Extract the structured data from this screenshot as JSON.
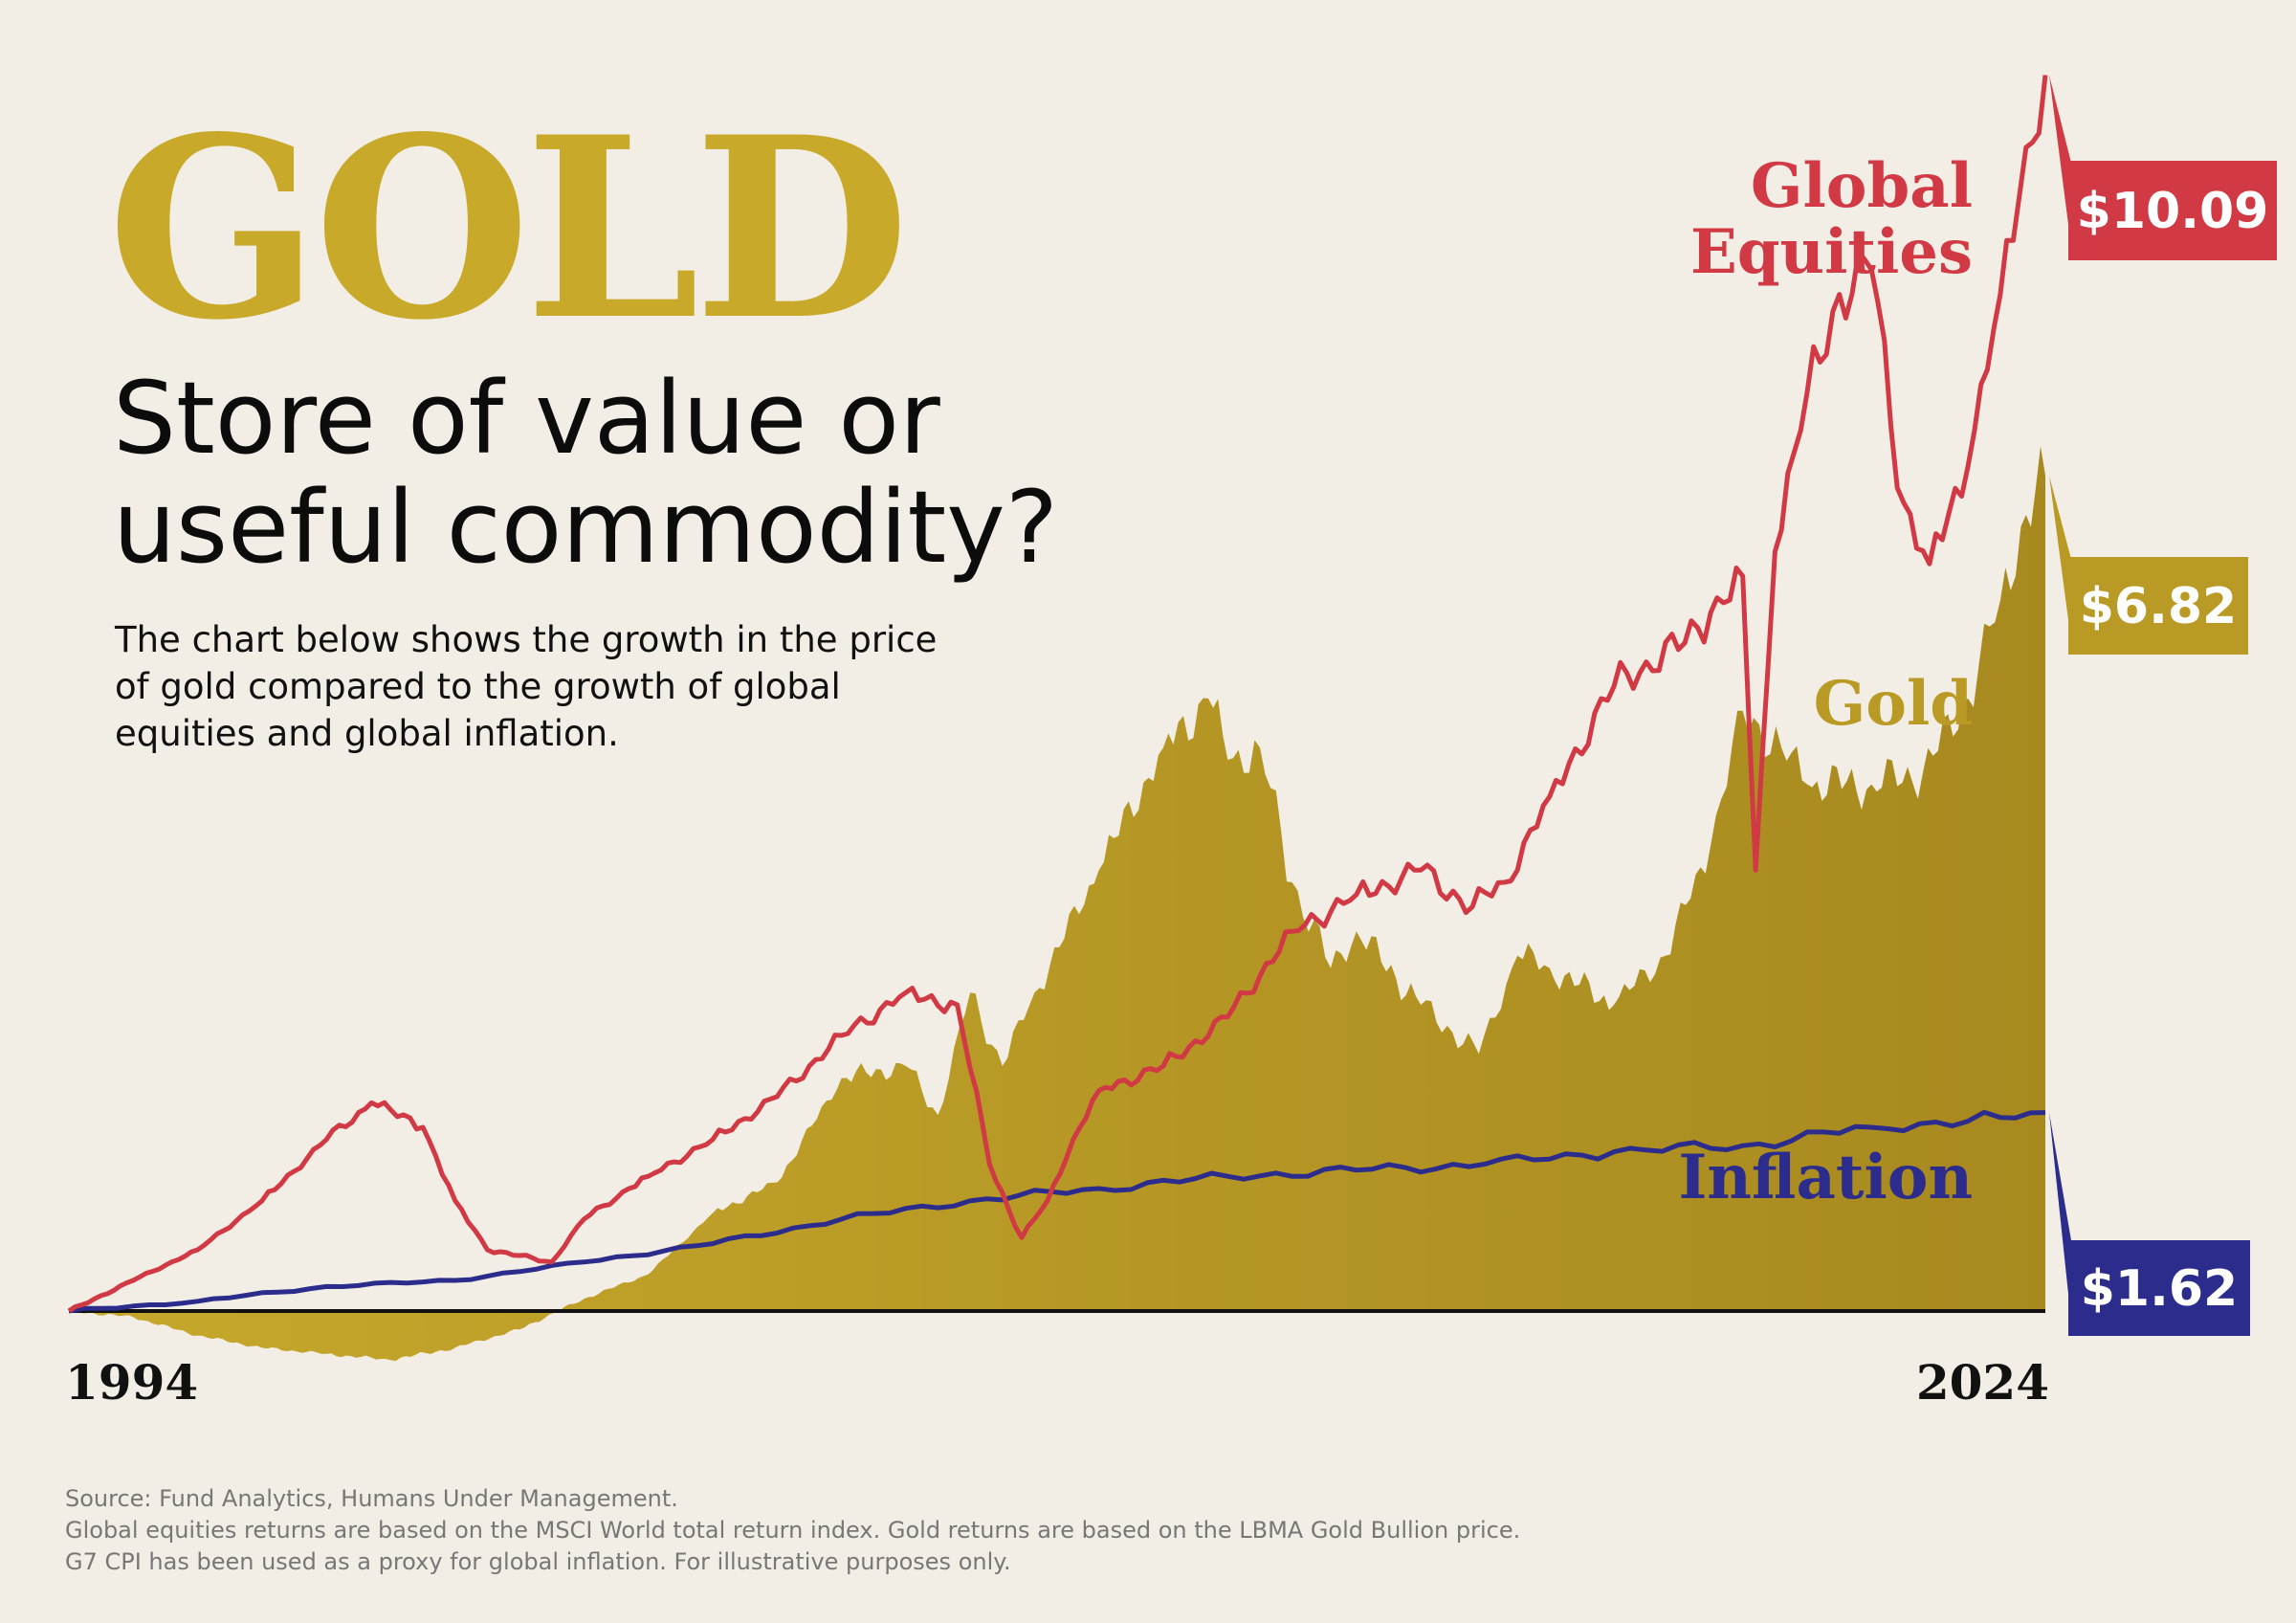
{
  "header": {
    "brand_title": "GOLD",
    "headline": "Store of value or useful commodity?",
    "intro": "The chart below shows the growth in the price of gold compared to the growth of global equities and global inflation."
  },
  "footnotes": {
    "source": "Source: Fund Analytics, Humans Under Management.",
    "note_1": "Global equities returns are based on the MSCI World total return index. Gold returns are based on the LBMA Gold Bullion price.",
    "note_2": "G7 CPI has been used as a proxy for global inflation. For illustrative purposes only."
  },
  "colors": {
    "background": "#f3eee5",
    "gold": "#b89a24",
    "gold_light": "#c8a92a",
    "equities": "#d13a45",
    "inflation": "#2b2c8c"
  },
  "chart_data": {
    "type": "area",
    "x_start_label": "1994",
    "x_end_label": "2024",
    "xlim": [
      1994,
      2024.7
    ],
    "ylim": [
      -1.0,
      10.5
    ],
    "baseline": 0,
    "series": [
      {
        "name": "Global Equities",
        "end_value_label": "$10.09",
        "x": [
          1994.0,
          1995.0,
          1996.0,
          1997.0,
          1998.0,
          1998.7,
          1999.5,
          2000.0,
          2000.5,
          2001.5,
          2002.0,
          2002.7,
          2003.0,
          2004.0,
          2005.0,
          2006.0,
          2007.0,
          2007.8,
          2008.3,
          2008.8,
          2009.2,
          2009.6,
          2010.0,
          2011.0,
          2012.0,
          2013.0,
          2014.0,
          2015.0,
          2015.8,
          2016.3,
          2017.0,
          2018.0,
          2018.5,
          2019.0,
          2019.5,
          2020.0,
          2020.2,
          2020.5,
          2021.0,
          2021.5,
          2022.0,
          2022.5,
          2022.9,
          2023.5,
          2024.0,
          2024.4,
          2024.7
        ],
        "y": [
          0.0,
          0.25,
          0.5,
          0.9,
          1.4,
          1.7,
          1.5,
          0.9,
          0.5,
          0.4,
          0.75,
          1.0,
          1.1,
          1.4,
          1.75,
          2.25,
          2.6,
          2.5,
          1.2,
          0.6,
          0.9,
          1.4,
          1.8,
          2.0,
          2.4,
          3.1,
          3.4,
          3.6,
          3.3,
          3.5,
          4.2,
          5.1,
          5.3,
          5.4,
          5.7,
          6.0,
          3.6,
          6.2,
          7.5,
          8.3,
          8.5,
          6.6,
          6.1,
          6.9,
          8.3,
          9.5,
          10.09
        ],
        "color": "#d13a45"
      },
      {
        "name": "Gold",
        "end_value_label": "$6.82",
        "x": [
          1994.0,
          1995.0,
          1996.0,
          1997.0,
          1998.0,
          1999.0,
          2000.0,
          2001.0,
          2002.0,
          2003.0,
          2004.0,
          2005.0,
          2006.0,
          2007.0,
          2007.5,
          2008.0,
          2008.5,
          2009.0,
          2010.0,
          2011.0,
          2011.7,
          2012.0,
          2012.5,
          2013.0,
          2013.6,
          2014.0,
          2015.0,
          2015.9,
          2016.5,
          2017.0,
          2018.0,
          2018.8,
          2019.5,
          2020.0,
          2020.6,
          2021.0,
          2022.0,
          2022.8,
          2023.5,
          2024.0,
          2024.4,
          2024.7
        ],
        "y": [
          0.0,
          -0.05,
          -0.2,
          -0.3,
          -0.35,
          -0.4,
          -0.3,
          -0.15,
          0.1,
          0.3,
          0.8,
          1.05,
          1.9,
          2.0,
          1.6,
          2.6,
          2.0,
          2.6,
          3.6,
          4.6,
          5.0,
          4.5,
          4.6,
          3.5,
          2.8,
          3.1,
          2.5,
          2.1,
          2.9,
          2.8,
          2.5,
          2.9,
          3.8,
          4.9,
          4.6,
          4.3,
          4.3,
          4.4,
          5.0,
          5.8,
          6.5,
          6.82
        ],
        "color": "#b89a24"
      },
      {
        "name": "Inflation",
        "end_value_label": "$1.62",
        "x": [
          1994.0,
          1996.0,
          1998.0,
          2000.0,
          2002.0,
          2004.0,
          2006.0,
          2008.0,
          2010.0,
          2012.0,
          2014.0,
          2016.0,
          2018.0,
          2020.0,
          2022.0,
          2024.0,
          2024.7
        ],
        "y": [
          0.0,
          0.08,
          0.2,
          0.25,
          0.4,
          0.55,
          0.75,
          0.9,
          1.0,
          1.1,
          1.15,
          1.2,
          1.3,
          1.35,
          1.5,
          1.58,
          1.62
        ],
        "color": "#2b2c8c"
      }
    ],
    "grid": false,
    "legend": "direct labels at right"
  }
}
